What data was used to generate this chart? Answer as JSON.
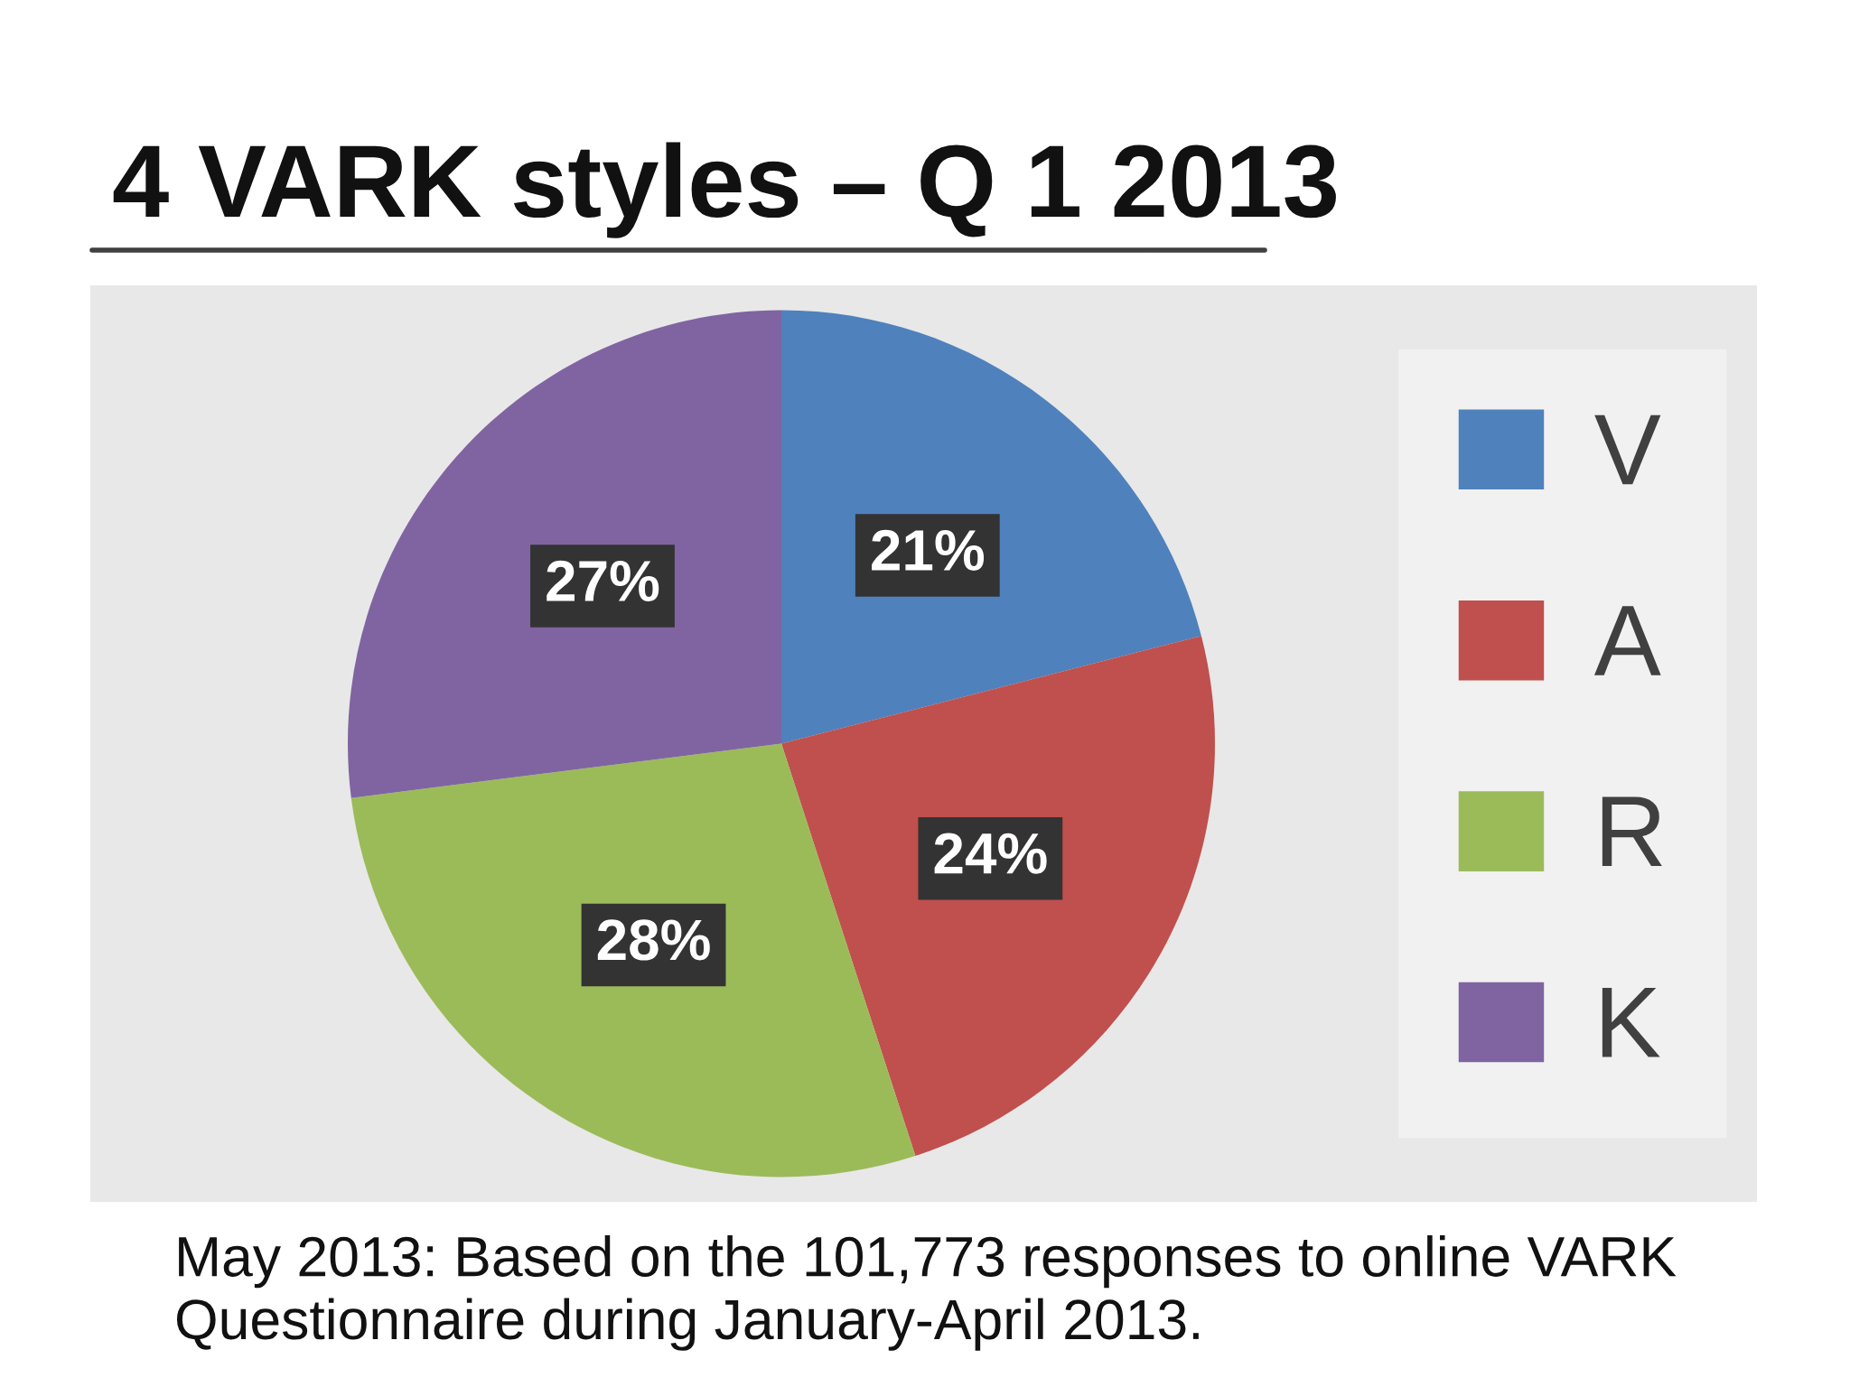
{
  "chart_data": {
    "type": "pie",
    "title": "4 VARK styles – Q 1 2013",
    "categories": [
      "V",
      "A",
      "R",
      "K"
    ],
    "values": [
      21,
      24,
      28,
      27
    ],
    "colors": [
      "#4f81bd",
      "#c0504d",
      "#9bbb59",
      "#8064a2"
    ],
    "value_labels": [
      "21%",
      "24%",
      "28%",
      "27%"
    ],
    "legend": "right",
    "annotations": [
      "May 2013: Based on the 101,773 responses to online VARK Questionnaire during January-April 2013."
    ]
  }
}
